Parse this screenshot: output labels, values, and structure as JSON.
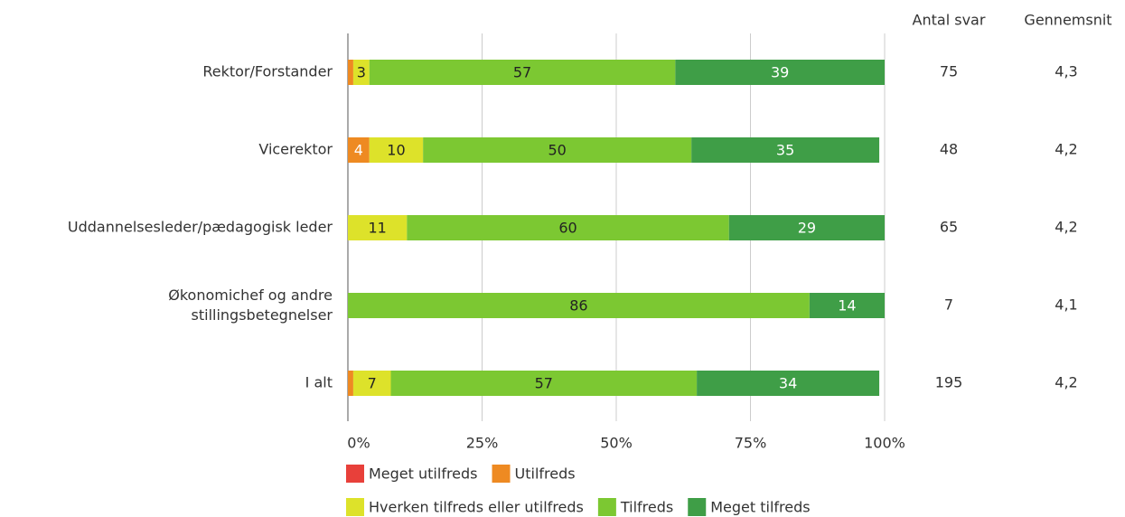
{
  "chart_data": {
    "type": "bar",
    "orientation": "horizontal",
    "stacked": true,
    "categories": [
      "Rektor/Forstander",
      "Vicerektor",
      "Uddannelsesleder/pædagogisk leder",
      "Økonomichef og andre\nstillingsbetegnelser",
      "I alt"
    ],
    "series": [
      {
        "name": "Meget utilfreds",
        "color": "#e8403a",
        "values": [
          0,
          0,
          0,
          0,
          0
        ]
      },
      {
        "name": "Utilfreds",
        "color": "#ee8a22",
        "values": [
          1,
          4,
          0,
          0,
          1
        ]
      },
      {
        "name": "Hverken tilfreds eller utilfreds",
        "color": "#dde22a",
        "values": [
          3,
          10,
          11,
          0,
          7
        ]
      },
      {
        "name": "Tilfreds",
        "color": "#7cc832",
        "values": [
          57,
          50,
          60,
          86,
          57
        ]
      },
      {
        "name": "Meget tilfreds",
        "color": "#3f9e47",
        "values": [
          39,
          35,
          29,
          14,
          34
        ]
      }
    ],
    "xlim": [
      0,
      100
    ],
    "xticks": [
      {
        "value": 0,
        "label": "0%"
      },
      {
        "value": 25,
        "label": "25%"
      },
      {
        "value": 50,
        "label": "50%"
      },
      {
        "value": 75,
        "label": "75%"
      },
      {
        "value": 100,
        "label": "100%"
      }
    ],
    "grid": true,
    "columns": [
      {
        "header": "Antal svar",
        "values": [
          75,
          48,
          65,
          7,
          195
        ]
      },
      {
        "header": "Gennemsnit",
        "values": [
          "4,3",
          "4,2",
          "4,2",
          "4,1",
          "4,2"
        ]
      }
    ]
  }
}
